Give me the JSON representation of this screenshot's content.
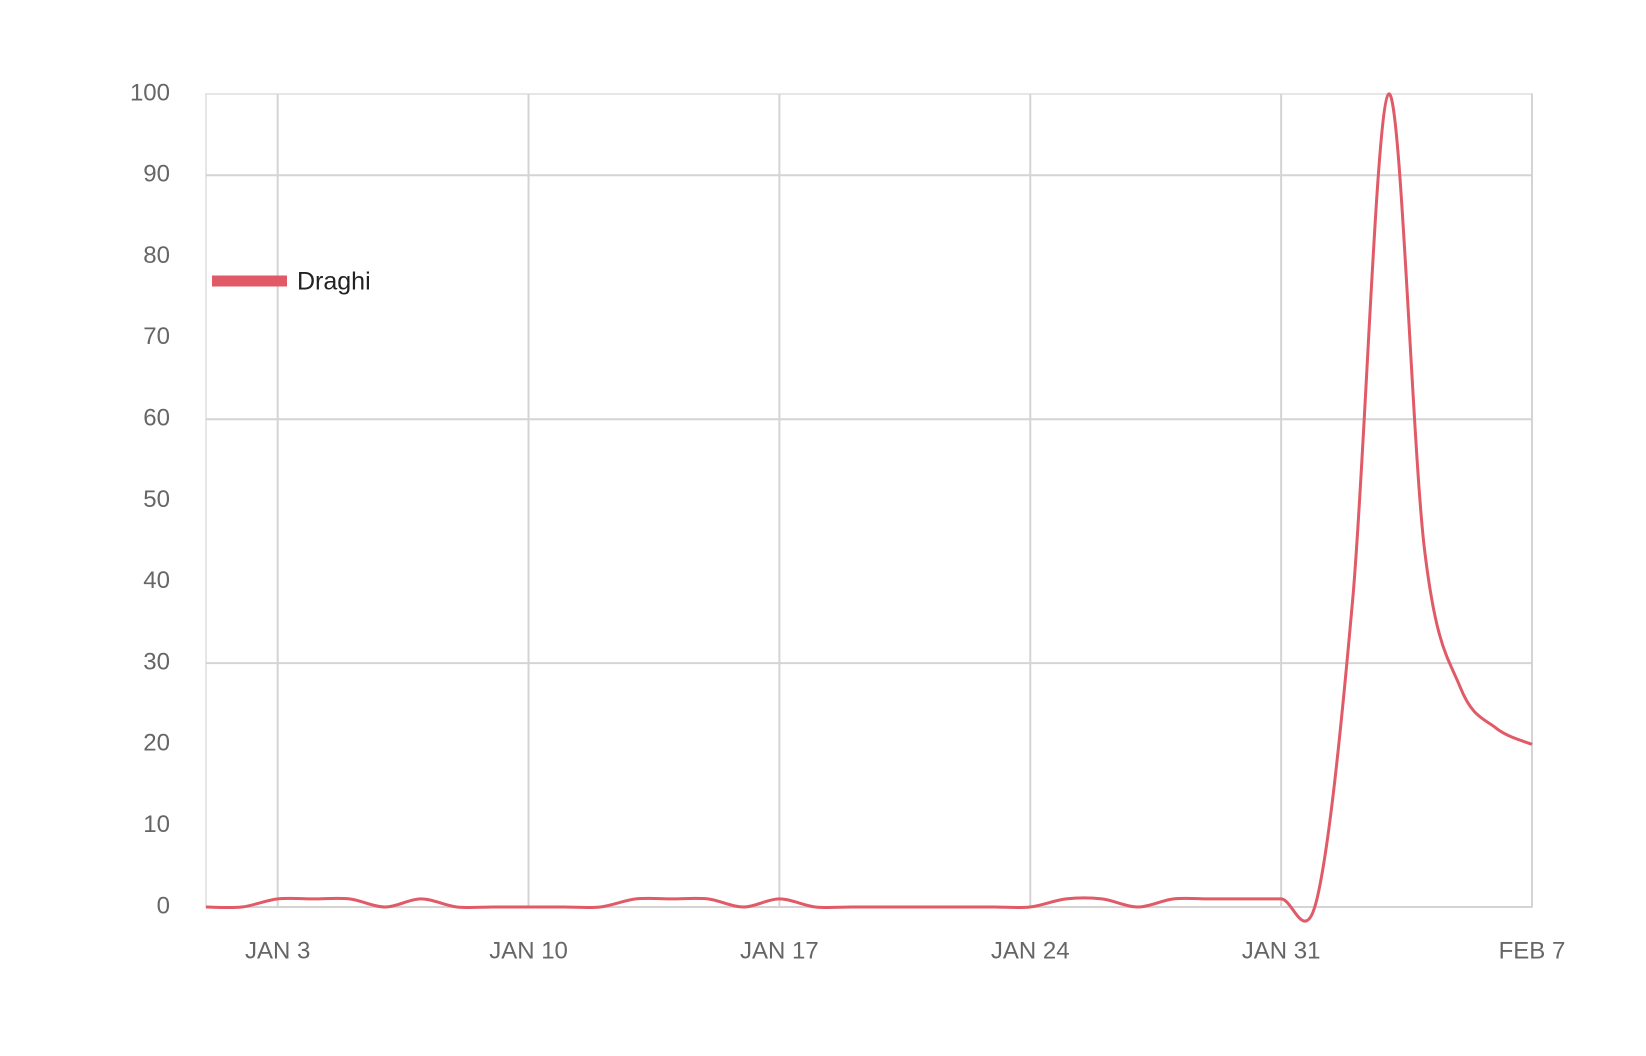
{
  "chart_data": {
    "type": "line",
    "categories": [
      null,
      null,
      "JAN 3",
      null,
      null,
      null,
      null,
      null,
      null,
      "JAN 10",
      null,
      null,
      null,
      null,
      null,
      null,
      "JAN 17",
      null,
      null,
      null,
      null,
      null,
      null,
      "JAN 24",
      null,
      null,
      null,
      null,
      null,
      null,
      "JAN 31",
      null,
      null,
      null,
      null,
      null,
      null,
      "FEB 7"
    ],
    "series": [
      {
        "name": "Draghi",
        "color": "#e05a67",
        "values": [
          0,
          0,
          1,
          1,
          1,
          0,
          1,
          0,
          0,
          0,
          0,
          0,
          1,
          1,
          1,
          0,
          1,
          0,
          0,
          0,
          0,
          0,
          0,
          0,
          1,
          1,
          0,
          1,
          1,
          1,
          1,
          1,
          38,
          100,
          44,
          27,
          22,
          20
        ]
      }
    ],
    "ylim": [
      0,
      100
    ],
    "yticks": [
      0,
      10,
      20,
      30,
      40,
      50,
      60,
      70,
      80,
      90,
      100
    ],
    "ygrid": [
      0,
      30,
      60,
      90
    ],
    "grid": true,
    "legend": "upper left"
  }
}
